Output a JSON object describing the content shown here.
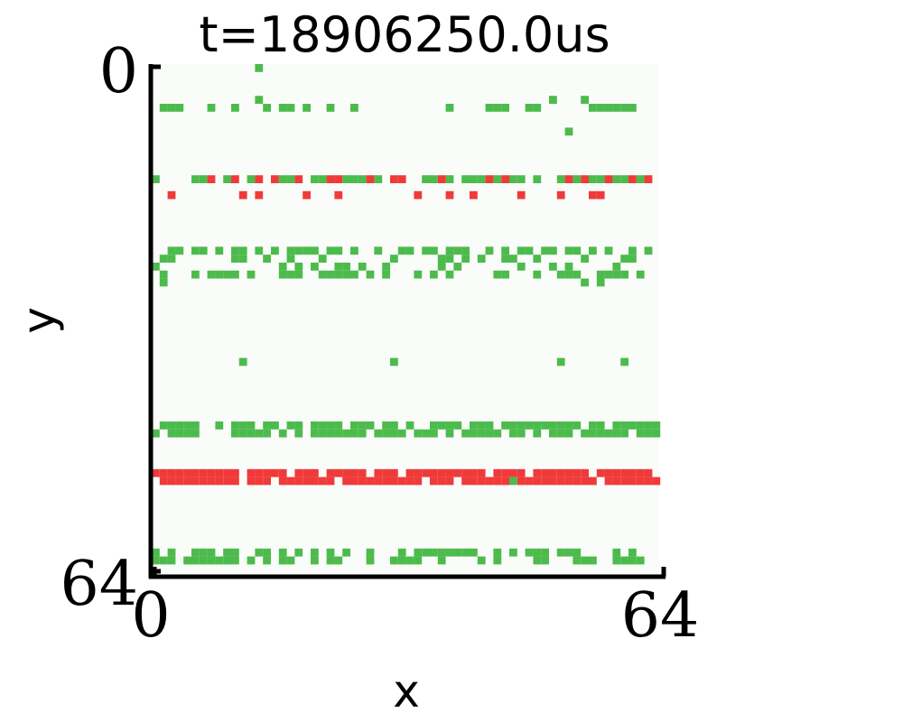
{
  "chart_data": {
    "type": "heatmap",
    "title": "t=18906250.0us",
    "xlabel": "x",
    "ylabel": "y",
    "xlim": [
      0,
      64
    ],
    "ylim": [
      64,
      0
    ],
    "x_tick_labels": [
      "0",
      "64"
    ],
    "y_tick_labels": [
      "0",
      "64"
    ],
    "grid": false,
    "colors": {
      "background": "#fafcfa",
      "on": "#4cbb4c",
      "off": "#f03a3a"
    },
    "pixels": [
      {
        "row": 0,
        "polarity": "on",
        "cols": [
          13
        ]
      },
      {
        "row": 5,
        "polarity": "on",
        "cols": [
          1,
          2,
          3,
          7,
          10,
          14,
          16,
          17,
          19,
          22,
          25,
          37,
          42,
          43,
          44,
          47,
          48,
          55,
          56,
          57,
          58,
          59,
          60
        ]
      },
      {
        "row": 4,
        "polarity": "on",
        "cols": [
          13,
          50,
          54
        ]
      },
      {
        "row": 8,
        "polarity": "on",
        "cols": [
          52
        ]
      },
      {
        "row": 14,
        "polarity": "on",
        "cols": [
          0,
          5,
          6,
          9,
          12,
          16,
          17,
          20,
          21,
          24,
          25,
          26,
          28,
          34,
          35,
          37,
          39,
          40,
          41,
          43,
          45,
          46,
          48,
          51,
          53,
          55,
          56,
          58,
          59,
          61
        ]
      },
      {
        "row": 14,
        "polarity": "off",
        "cols": [
          7,
          10,
          13,
          15,
          18,
          22,
          23,
          27,
          30,
          31,
          36,
          42,
          44,
          52,
          54,
          57,
          60,
          62
        ]
      },
      {
        "row": 16,
        "polarity": "off",
        "cols": [
          2,
          11,
          13,
          19,
          23,
          33,
          37,
          40,
          46,
          51,
          55,
          56
        ]
      },
      {
        "row": 23,
        "polarity": "on",
        "cols": [
          2,
          3,
          5,
          6,
          8,
          10,
          11,
          13,
          15,
          17,
          18,
          19,
          20,
          22,
          23,
          25,
          28,
          31,
          32,
          34,
          35,
          37,
          38,
          39,
          42,
          44,
          46,
          47,
          49,
          50,
          52,
          53,
          55,
          57,
          60,
          62
        ]
      },
      {
        "row": 24,
        "polarity": "on",
        "cols": [
          1,
          2,
          10,
          11,
          14,
          17,
          21,
          30,
          36,
          37,
          39,
          41,
          44,
          45,
          48,
          54,
          59,
          60
        ]
      },
      {
        "row": 25,
        "polarity": "on",
        "cols": [
          0,
          16,
          18,
          20,
          23,
          24,
          26,
          29,
          36,
          38,
          46,
          50,
          52,
          58
        ]
      },
      {
        "row": 26,
        "polarity": "on",
        "cols": [
          1,
          5,
          7,
          8,
          9,
          10,
          12,
          16,
          17,
          18,
          21,
          22,
          23,
          24,
          25,
          27,
          29,
          33,
          35,
          37,
          43,
          44,
          48,
          51,
          52,
          53,
          56,
          57,
          58,
          59,
          61
        ]
      },
      {
        "row": 27,
        "polarity": "on",
        "cols": [
          1,
          54,
          56
        ]
      },
      {
        "row": 37,
        "polarity": "on",
        "cols": [
          11,
          30,
          51,
          59
        ]
      },
      {
        "row": 45,
        "polarity": "on",
        "cols": [
          1,
          2,
          3,
          4,
          5,
          8,
          10,
          11,
          12,
          14,
          15,
          17,
          18,
          20,
          21,
          22,
          23,
          25,
          26,
          27,
          29,
          30,
          32,
          35,
          36,
          37,
          38,
          40,
          41,
          42,
          44,
          45,
          46,
          47,
          48,
          49,
          50,
          51,
          52,
          53,
          55,
          56,
          58,
          59,
          60,
          61,
          62,
          63
        ]
      },
      {
        "row": 46,
        "polarity": "on",
        "cols": [
          0,
          2,
          3,
          4,
          5,
          10,
          11,
          12,
          13,
          14,
          16,
          18,
          20,
          21,
          22,
          23,
          24,
          25,
          26,
          28,
          29,
          30,
          31,
          33,
          34,
          35,
          37,
          39,
          40,
          41,
          42,
          43,
          45,
          46,
          48,
          50,
          51,
          52,
          54,
          55,
          56,
          57,
          58,
          59,
          61,
          62,
          63
        ]
      },
      {
        "row": 51,
        "polarity": "off",
        "cols": [
          0,
          1,
          2,
          3,
          4,
          5,
          6,
          7,
          8,
          9,
          10,
          12,
          13,
          14,
          15,
          16,
          18,
          19,
          20,
          22,
          23,
          24,
          25,
          26,
          28,
          29,
          30,
          32,
          33,
          34,
          35,
          36,
          37,
          38,
          39,
          40,
          41,
          43,
          44,
          45,
          46,
          48,
          49,
          50,
          51,
          52,
          53,
          54,
          56,
          57,
          58,
          59,
          60,
          61,
          62
        ]
      },
      {
        "row": 52,
        "polarity": "off",
        "cols": [
          1,
          2,
          3,
          4,
          5,
          6,
          7,
          8,
          9,
          10,
          12,
          13,
          14,
          16,
          17,
          18,
          19,
          20,
          21,
          22,
          24,
          25,
          26,
          27,
          28,
          29,
          30,
          31,
          32,
          33,
          35,
          36,
          37,
          39,
          40,
          41,
          42,
          43,
          44,
          46,
          47,
          48,
          49,
          50,
          51,
          52,
          53,
          54,
          55,
          57,
          58,
          59,
          60,
          61,
          62,
          63
        ]
      },
      {
        "row": 52,
        "polarity": "on",
        "cols": [
          45
        ]
      },
      {
        "row": 61,
        "polarity": "on",
        "cols": [
          0,
          2,
          5,
          6,
          7,
          9,
          10,
          13,
          14,
          16,
          18,
          20,
          22,
          24,
          27,
          31,
          33,
          34,
          35,
          36,
          37,
          38,
          39,
          40,
          43,
          45,
          47,
          48,
          49,
          51,
          52,
          53,
          58,
          60
        ]
      },
      {
        "row": 62,
        "polarity": "on",
        "cols": [
          0,
          1,
          2,
          4,
          5,
          6,
          7,
          8,
          9,
          10,
          12,
          14,
          16,
          17,
          20,
          22,
          23,
          27,
          30,
          31,
          32,
          33,
          36,
          41,
          43,
          48,
          49,
          53,
          54,
          55,
          58,
          59,
          60,
          61
        ]
      }
    ]
  }
}
